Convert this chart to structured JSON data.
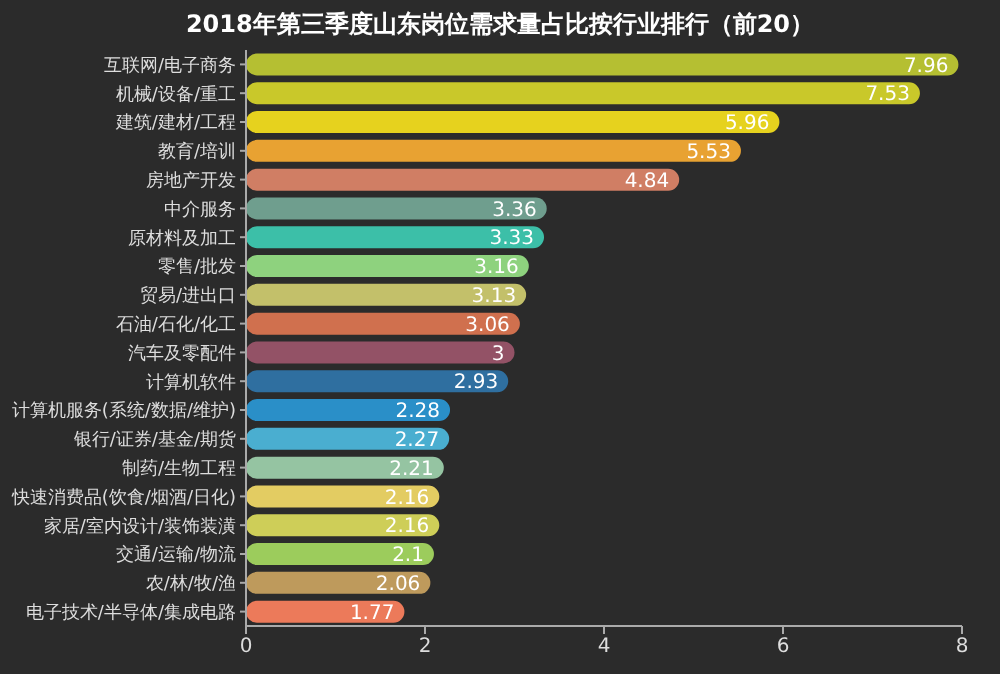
{
  "chart_data": {
    "type": "bar",
    "orientation": "horizontal",
    "title": "2018年第三季度山东岗位需求量占比按行业排行（前20）",
    "categories": [
      "互联网/电子商务",
      "机械/设备/重工",
      "建筑/建材/工程",
      "教育/培训",
      "房地产开发",
      "中介服务",
      "原材料及加工",
      "零售/批发",
      "贸易/进出口",
      "石油/石化/化工",
      "汽车及零配件",
      "计算机软件",
      "计算机服务(系统/数据/维护)",
      "银行/证券/基金/期货",
      "制药/生物工程",
      "快速消费品(饮食/烟酒/日化)",
      "家居/室内设计/装饰装潢",
      "交通/运输/物流",
      "农/林/牧/渔",
      "电子技术/半导体/集成电路"
    ],
    "values": [
      7.96,
      7.53,
      5.96,
      5.53,
      4.84,
      3.36,
      3.33,
      3.16,
      3.13,
      3.06,
      3,
      2.93,
      2.28,
      2.27,
      2.21,
      2.16,
      2.16,
      2.1,
      2.06,
      1.77
    ],
    "colors": [
      "#b5bf32",
      "#c9c82a",
      "#e6d21e",
      "#e8a232",
      "#d07e64",
      "#6f9e8e",
      "#3cbfa8",
      "#8ed27e",
      "#c3c06a",
      "#d0704e",
      "#935266",
      "#2f6fa0",
      "#2a8fc8",
      "#4aaed0",
      "#95c4a2",
      "#e3cc62",
      "#cece58",
      "#9ccc5c",
      "#be9a5c",
      "#ec7a5a"
    ],
    "xlim": [
      0,
      8
    ],
    "xticks": [
      0,
      2,
      4,
      6,
      8
    ],
    "data_labels": true,
    "grid": false
  }
}
